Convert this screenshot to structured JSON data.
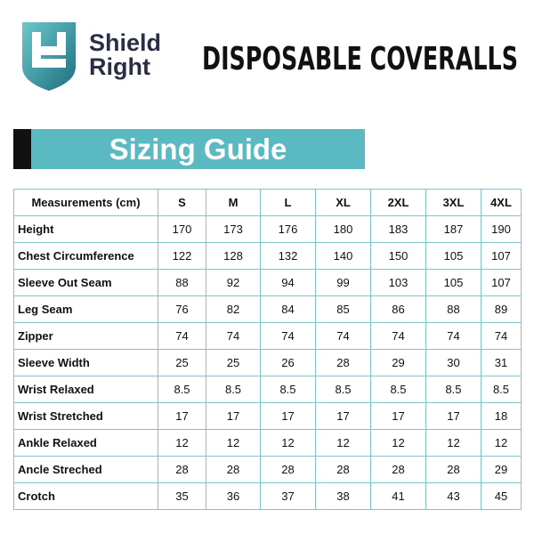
{
  "header": {
    "brand": [
      "Shield",
      "Right"
    ],
    "title": "DISPOSABLE COVERALLS"
  },
  "banner": {
    "title": "Sizing Guide"
  },
  "table": {
    "columns": [
      "Measurements (cm)",
      "S",
      "M",
      "L",
      "XL",
      "2XL",
      "3XL",
      "4XL"
    ],
    "rows": [
      [
        "Height",
        "170",
        "173",
        "176",
        "180",
        "183",
        "187",
        "190"
      ],
      [
        "Chest Circumference",
        "122",
        "128",
        "132",
        "140",
        "150",
        "105",
        "107"
      ],
      [
        "Sleeve Out Seam",
        "88",
        "92",
        "94",
        "99",
        "103",
        "105",
        "107"
      ],
      [
        "Leg Seam",
        "76",
        "82",
        "84",
        "85",
        "86",
        "88",
        "89"
      ],
      [
        "Zipper",
        "74",
        "74",
        "74",
        "74",
        "74",
        "74",
        "74"
      ],
      [
        "Sleeve Width",
        "25",
        "25",
        "26",
        "28",
        "29",
        "30",
        "31"
      ],
      [
        "Wrist Relaxed",
        "8.5",
        "8.5",
        "8.5",
        "8.5",
        "8.5",
        "8.5",
        "8.5"
      ],
      [
        "Wrist Stretched",
        "17",
        "17",
        "17",
        "17",
        "17",
        "17",
        "18"
      ],
      [
        "Ankle Relaxed",
        "12",
        "12",
        "12",
        "12",
        "12",
        "12",
        "12"
      ],
      [
        "Ancle Streched",
        "28",
        "28",
        "28",
        "28",
        "28",
        "28",
        "29"
      ],
      [
        "Crotch",
        "35",
        "36",
        "37",
        "38",
        "41",
        "43",
        "45"
      ]
    ]
  }
}
